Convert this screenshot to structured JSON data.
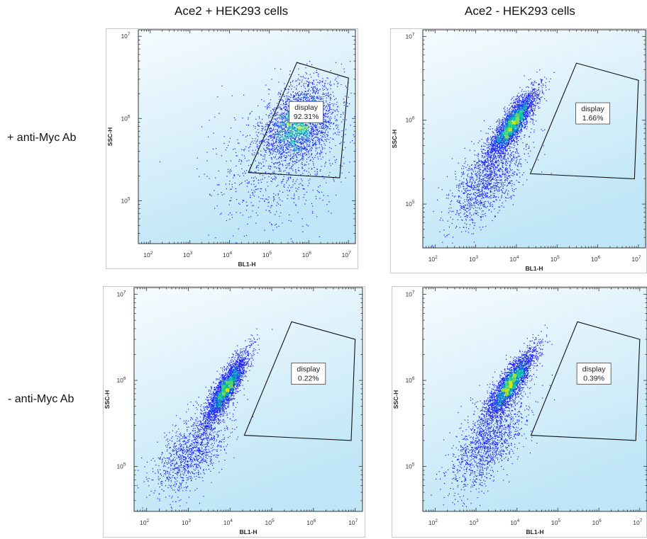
{
  "column_titles": [
    "Ace2 + HEK293 cells",
    "Ace2 - HEK293 cells"
  ],
  "row_labels": [
    "+ anti-Myc Ab",
    "- anti-Myc Ab"
  ],
  "colors": {
    "background_top": "#f6fbfe",
    "background_bottom": "#bfe6f7",
    "density_low": "#1a1aff",
    "density_mid": "#00c8a0",
    "density_high": "#d8e600",
    "gate": "#111111"
  },
  "chart_data": [
    {
      "type": "scatter",
      "subtype": "flow-cytometry-density",
      "title": "",
      "subtitle": "",
      "column": "Ace2 + HEK293 cells",
      "row": "+ anti-Myc Ab",
      "xlabel": "BL1-H",
      "ylabel": "SSC-H",
      "xscale": "log",
      "yscale": "log",
      "xlim": [
        50,
        15000000
      ],
      "ylim": [
        30000,
        12000000
      ],
      "xticks": [
        {
          "value": 100,
          "label": "10",
          "exp": "2"
        },
        {
          "value": 1000,
          "label": "10",
          "exp": "3"
        },
        {
          "value": 10000,
          "label": "10",
          "exp": "4"
        },
        {
          "value": 100000,
          "label": "10",
          "exp": "5"
        },
        {
          "value": 1000000,
          "label": "10",
          "exp": "6"
        },
        {
          "value": 10000000,
          "label": "10",
          "exp": "7"
        }
      ],
      "yticks": [
        {
          "value": 100000,
          "label": "10",
          "exp": "5"
        },
        {
          "value": 1000000,
          "label": "10",
          "exp": "6"
        },
        {
          "value": 10000000,
          "label": "10",
          "exp": "7"
        }
      ],
      "gate": {
        "name": "display",
        "percent": "92.31%",
        "vertices": [
          [
            30000,
            220000
          ],
          [
            500000,
            4800000
          ],
          [
            10000000,
            3100000
          ],
          [
            6000000,
            190000
          ]
        ]
      },
      "populations": [
        {
          "center": [
            600000,
            900000
          ],
          "spread": [
            0.45,
            0.24
          ],
          "corr": 0.35,
          "count": 2600
        },
        {
          "center": [
            200000,
            300000
          ],
          "spread": [
            0.9,
            0.4
          ],
          "corr": 0.3,
          "count": 900
        }
      ]
    },
    {
      "type": "scatter",
      "subtype": "flow-cytometry-density",
      "title": "",
      "subtitle": "",
      "column": "Ace2 - HEK293 cells",
      "row": "+ anti-Myc Ab",
      "xlabel": "BL1-H",
      "ylabel": "SSC-H",
      "xscale": "log",
      "yscale": "log",
      "xlim": [
        50,
        15000000
      ],
      "ylim": [
        30000,
        12000000
      ],
      "xticks": [
        {
          "value": 100,
          "label": "10",
          "exp": "2"
        },
        {
          "value": 1000,
          "label": "10",
          "exp": "3"
        },
        {
          "value": 10000,
          "label": "10",
          "exp": "4"
        },
        {
          "value": 100000,
          "label": "10",
          "exp": "5"
        },
        {
          "value": 1000000,
          "label": "10",
          "exp": "6"
        },
        {
          "value": 10000000,
          "label": "10",
          "exp": "7"
        }
      ],
      "yticks": [
        {
          "value": 100000,
          "label": "10",
          "exp": "5"
        },
        {
          "value": 1000000,
          "label": "10",
          "exp": "6"
        },
        {
          "value": 10000000,
          "label": "10",
          "exp": "7"
        }
      ],
      "gate": {
        "name": "display",
        "percent": "1.66%",
        "vertices": [
          [
            22000,
            230000
          ],
          [
            300000,
            4800000
          ],
          [
            10000000,
            3000000
          ],
          [
            8000000,
            200000
          ]
        ]
      },
      "populations": [
        {
          "center": [
            8000,
            900000
          ],
          "spread": [
            0.3,
            0.2
          ],
          "corr": 0.85,
          "count": 2800
        },
        {
          "center": [
            2000,
            200000
          ],
          "spread": [
            0.45,
            0.28
          ],
          "corr": 0.6,
          "count": 1400
        }
      ]
    },
    {
      "type": "scatter",
      "subtype": "flow-cytometry-density",
      "title": "",
      "subtitle": "",
      "column": "Ace2 + HEK293 cells",
      "row": "- anti-Myc Ab",
      "xlabel": "BL1-H",
      "ylabel": "SSC-H",
      "xscale": "log",
      "yscale": "log",
      "xlim": [
        50,
        15000000
      ],
      "ylim": [
        30000,
        12000000
      ],
      "xticks": [
        {
          "value": 100,
          "label": "10",
          "exp": "2"
        },
        {
          "value": 1000,
          "label": "10",
          "exp": "3"
        },
        {
          "value": 10000,
          "label": "10",
          "exp": "4"
        },
        {
          "value": 100000,
          "label": "10",
          "exp": "5"
        },
        {
          "value": 1000000,
          "label": "10",
          "exp": "6"
        },
        {
          "value": 10000000,
          "label": "10",
          "exp": "7"
        }
      ],
      "yticks": [
        {
          "value": 100000,
          "label": "10",
          "exp": "5"
        },
        {
          "value": 1000000,
          "label": "10",
          "exp": "6"
        },
        {
          "value": 10000000,
          "label": "10",
          "exp": "7"
        }
      ],
      "gate": {
        "name": "display",
        "percent": "0.22%",
        "vertices": [
          [
            22000,
            230000
          ],
          [
            300000,
            4800000
          ],
          [
            10000000,
            3000000
          ],
          [
            8000000,
            200000
          ]
        ]
      },
      "populations": [
        {
          "center": [
            8000,
            800000
          ],
          "spread": [
            0.25,
            0.2
          ],
          "corr": 0.85,
          "count": 2800
        },
        {
          "center": [
            1200,
            150000
          ],
          "spread": [
            0.45,
            0.25
          ],
          "corr": 0.6,
          "count": 1200
        }
      ]
    },
    {
      "type": "scatter",
      "subtype": "flow-cytometry-density",
      "title": "",
      "subtitle": "",
      "column": "Ace2 - HEK293 cells",
      "row": "- anti-Myc Ab",
      "xlabel": "BL1-H",
      "ylabel": "SSC-H",
      "xscale": "log",
      "yscale": "log",
      "xlim": [
        50,
        15000000
      ],
      "ylim": [
        30000,
        12000000
      ],
      "xticks": [
        {
          "value": 100,
          "label": "10",
          "exp": "2"
        },
        {
          "value": 1000,
          "label": "10",
          "exp": "3"
        },
        {
          "value": 10000,
          "label": "10",
          "exp": "4"
        },
        {
          "value": 100000,
          "label": "10",
          "exp": "5"
        },
        {
          "value": 1000000,
          "label": "10",
          "exp": "6"
        },
        {
          "value": 10000000,
          "label": "10",
          "exp": "7"
        }
      ],
      "yticks": [
        {
          "value": 100000,
          "label": "10",
          "exp": "5"
        },
        {
          "value": 1000000,
          "label": "10",
          "exp": "6"
        },
        {
          "value": 10000000,
          "label": "10",
          "exp": "7"
        }
      ],
      "gate": {
        "name": "display",
        "percent": "0.39%",
        "vertices": [
          [
            22000,
            230000
          ],
          [
            300000,
            4800000
          ],
          [
            10000000,
            3000000
          ],
          [
            8000000,
            200000
          ]
        ]
      },
      "populations": [
        {
          "center": [
            7000,
            900000
          ],
          "spread": [
            0.3,
            0.2
          ],
          "corr": 0.85,
          "count": 2800
        },
        {
          "center": [
            2000,
            200000
          ],
          "spread": [
            0.45,
            0.28
          ],
          "corr": 0.6,
          "count": 1400
        }
      ]
    }
  ]
}
